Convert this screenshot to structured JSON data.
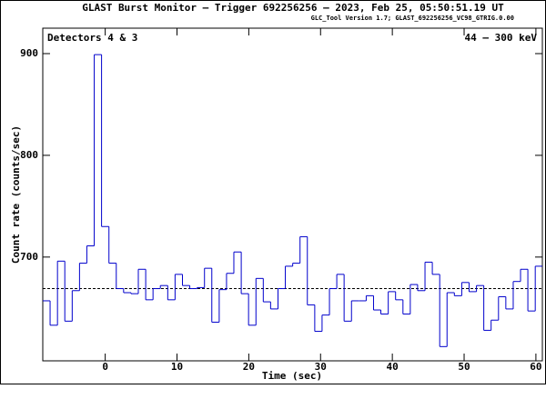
{
  "chart_data": {
    "type": "histogram",
    "title": "GLAST Burst Monitor  –  Trigger 692256256  –  2023, Feb 25, 05:50:51.19 UT",
    "subtitle": "GLC_Tool Version 1.7; GLAST_692256256_VC98_GTRIG.0.00",
    "annotations": [
      "Detectors 4 & 3",
      "44 – 300 keV"
    ],
    "x_label": "Time (sec)",
    "y_label": "Count rate (counts/sec)",
    "color": "#0000cc",
    "bins": [
      -8.7,
      -7.68,
      -6.65,
      -5.63,
      -4.6,
      -3.58,
      -2.56,
      -1.53,
      -0.51,
      0.52,
      1.54,
      2.56,
      3.59,
      4.61,
      5.64,
      6.66,
      7.68,
      8.71,
      9.73,
      10.76,
      11.78,
      12.8,
      13.83,
      14.85,
      15.88,
      16.9,
      17.92,
      18.95,
      19.97,
      21.0,
      22.02,
      23.04,
      24.07,
      25.09,
      26.12,
      27.14,
      28.16,
      29.19,
      30.21,
      31.24,
      32.26,
      33.28,
      34.31,
      35.33,
      36.36,
      37.38,
      38.4,
      39.43,
      40.45,
      41.48,
      42.5,
      43.52,
      44.55,
      45.57,
      46.6,
      47.62,
      48.64,
      49.67,
      50.69,
      51.72,
      52.74,
      53.76,
      54.79,
      55.81,
      56.84,
      57.86,
      58.88,
      59.91,
      60.9
    ],
    "counts": [
      657,
      633,
      696,
      637,
      667,
      694,
      711,
      899,
      730,
      694,
      669,
      665,
      664,
      688,
      658,
      669,
      672,
      658,
      683,
      672,
      669,
      670,
      689,
      636,
      668,
      684,
      705,
      664,
      633,
      679,
      656,
      649,
      669,
      691,
      694,
      720,
      653,
      627,
      643,
      669,
      683,
      637,
      657,
      657,
      662,
      648,
      644,
      666,
      658,
      644,
      673,
      667,
      695,
      683,
      612,
      665,
      662,
      675,
      666,
      672,
      628,
      638,
      661,
      649,
      676,
      688,
      647,
      691
    ],
    "background_level": 669,
    "xlim": [
      -8.7,
      60.9
    ],
    "ylim": [
      598,
      925
    ],
    "xticks": [
      0,
      10,
      20,
      30,
      40,
      50,
      60
    ],
    "yticks": [
      700,
      800,
      900
    ]
  }
}
